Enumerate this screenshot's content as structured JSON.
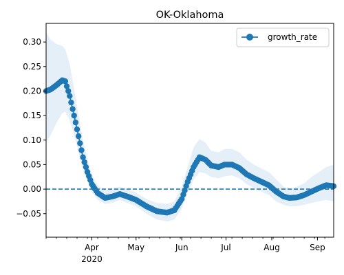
{
  "chart_data": {
    "type": "line",
    "title": "OK-Oklahoma",
    "xlabel": "",
    "ylabel": "",
    "x_range": [
      "2020-03-01",
      "2020-09-12"
    ],
    "ylim": [
      -0.098,
      0.338
    ],
    "y_ticks": [
      -0.05,
      0.0,
      0.05,
      0.1,
      0.15,
      0.2,
      0.25,
      0.3
    ],
    "y_tick_labels": [
      "−0.05",
      "0.00",
      "0.05",
      "0.10",
      "0.15",
      "0.20",
      "0.25",
      "0.30"
    ],
    "x_month_ticks": [
      {
        "date": "2020-04-01",
        "label": "Apr",
        "sublabel": "2020"
      },
      {
        "date": "2020-05-01",
        "label": "May",
        "sublabel": ""
      },
      {
        "date": "2020-06-01",
        "label": "Jun",
        "sublabel": ""
      },
      {
        "date": "2020-07-01",
        "label": "Jul",
        "sublabel": ""
      },
      {
        "date": "2020-08-01",
        "label": "Aug",
        "sublabel": ""
      },
      {
        "date": "2020-09-01",
        "label": "Sep",
        "sublabel": ""
      }
    ],
    "grid": false,
    "legend": {
      "position": "top-right",
      "entries": [
        "growth_rate"
      ]
    },
    "colors": {
      "line": "#1f77b4",
      "band": "#c6dbef",
      "zero_line": "#1f77b4"
    },
    "reference_line": {
      "y": 0.0,
      "style": "dashed"
    },
    "series": [
      {
        "name": "growth_rate",
        "anchors": [
          [
            "2020-03-01",
            0.2,
            0.095,
            0.32
          ],
          [
            "2020-03-04",
            0.203,
            0.11,
            0.305
          ],
          [
            "2020-03-08",
            0.212,
            0.135,
            0.296
          ],
          [
            "2020-03-12",
            0.222,
            0.155,
            0.292
          ],
          [
            "2020-03-14",
            0.22,
            0.158,
            0.285
          ],
          [
            "2020-03-17",
            0.19,
            0.14,
            0.255
          ],
          [
            "2020-03-20",
            0.15,
            0.11,
            0.205
          ],
          [
            "2020-03-23",
            0.108,
            0.075,
            0.15
          ],
          [
            "2020-03-26",
            0.065,
            0.04,
            0.1
          ],
          [
            "2020-03-29",
            0.035,
            0.018,
            0.062
          ],
          [
            "2020-04-01",
            0.01,
            -0.005,
            0.03
          ],
          [
            "2020-04-05",
            -0.008,
            -0.022,
            0.008
          ],
          [
            "2020-04-10",
            -0.018,
            -0.03,
            -0.003
          ],
          [
            "2020-04-15",
            -0.015,
            -0.028,
            0.002
          ],
          [
            "2020-04-20",
            -0.01,
            -0.022,
            0.005
          ],
          [
            "2020-04-25",
            -0.015,
            -0.028,
            0.0
          ],
          [
            "2020-05-01",
            -0.022,
            -0.035,
            -0.007
          ],
          [
            "2020-05-08",
            -0.035,
            -0.05,
            -0.02
          ],
          [
            "2020-05-15",
            -0.045,
            -0.062,
            -0.028
          ],
          [
            "2020-05-22",
            -0.048,
            -0.066,
            -0.03
          ],
          [
            "2020-05-27",
            -0.043,
            -0.062,
            -0.025
          ],
          [
            "2020-06-01",
            -0.02,
            -0.04,
            0.005
          ],
          [
            "2020-06-05",
            0.015,
            -0.008,
            0.045
          ],
          [
            "2020-06-09",
            0.045,
            0.02,
            0.085
          ],
          [
            "2020-06-13",
            0.065,
            0.035,
            0.102
          ],
          [
            "2020-06-17",
            0.06,
            0.032,
            0.095
          ],
          [
            "2020-06-21",
            0.048,
            0.025,
            0.078
          ],
          [
            "2020-06-26",
            0.045,
            0.022,
            0.075
          ],
          [
            "2020-06-30",
            0.05,
            0.026,
            0.082
          ],
          [
            "2020-07-05",
            0.05,
            0.028,
            0.082
          ],
          [
            "2020-07-10",
            0.043,
            0.022,
            0.075
          ],
          [
            "2020-07-15",
            0.03,
            0.01,
            0.06
          ],
          [
            "2020-07-20",
            0.022,
            0.002,
            0.05
          ],
          [
            "2020-07-25",
            0.015,
            -0.005,
            0.042
          ],
          [
            "2020-07-30",
            0.008,
            -0.012,
            0.035
          ],
          [
            "2020-08-04",
            -0.005,
            -0.025,
            0.02
          ],
          [
            "2020-08-09",
            -0.015,
            -0.032,
            0.005
          ],
          [
            "2020-08-13",
            -0.018,
            -0.035,
            0.0
          ],
          [
            "2020-08-18",
            -0.017,
            -0.035,
            0.005
          ],
          [
            "2020-08-23",
            -0.012,
            -0.032,
            0.012
          ],
          [
            "2020-08-28",
            -0.005,
            -0.028,
            0.025
          ],
          [
            "2020-09-02",
            0.002,
            -0.025,
            0.035
          ],
          [
            "2020-09-07",
            0.008,
            -0.022,
            0.045
          ],
          [
            "2020-09-12",
            0.006,
            -0.025,
            0.05
          ]
        ]
      }
    ]
  }
}
